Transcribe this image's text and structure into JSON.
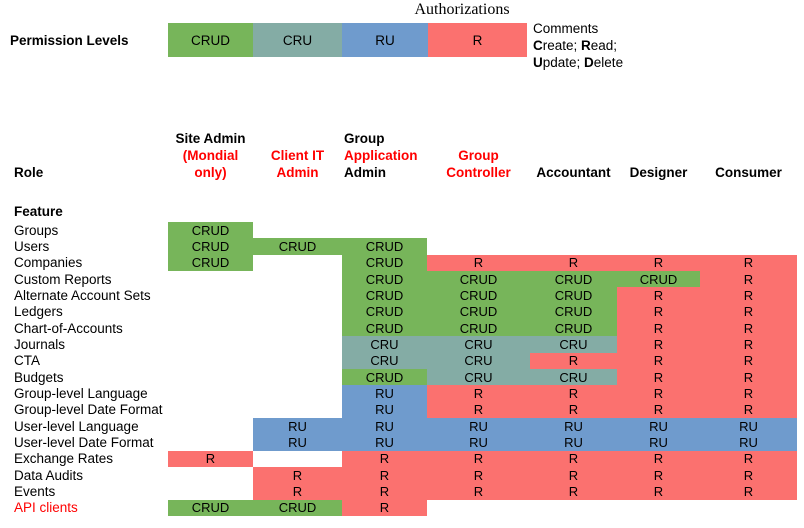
{
  "title": "Authorizations",
  "colors": {
    "green": "#77B55A",
    "teal": "#84ACA5",
    "blue": "#6F9BCD",
    "red": "#FB716F",
    "text_red": "#FF0000",
    "text_black": "#000000"
  },
  "legend": {
    "label": "Permission Levels",
    "cells": [
      {
        "text": "CRUD",
        "color": "green"
      },
      {
        "text": "CRU",
        "color": "teal"
      },
      {
        "text": "RU",
        "color": "blue"
      },
      {
        "text": "R",
        "color": "red"
      }
    ],
    "comments": {
      "heading": "Comments",
      "c": "C",
      "create_rest": "reate; ",
      "r": "R",
      "read_rest": "ead;",
      "u": "U",
      "update_rest": "pdate; ",
      "d": "D",
      "delete_rest": "elete"
    }
  },
  "header": {
    "role_label": "Role",
    "feature_label": "Feature",
    "columns": [
      {
        "id": "site-admin",
        "align": "center",
        "lines": [
          {
            "text": "Site Admin",
            "color": "text_black"
          },
          {
            "text": "(Mondial",
            "color": "text_red"
          },
          {
            "text": "only)",
            "color": "text_red"
          }
        ]
      },
      {
        "id": "client-it-admin",
        "align": "center",
        "lines": [
          {
            "text": "Client IT",
            "color": "text_red"
          },
          {
            "text": "Admin",
            "color": "text_red"
          }
        ]
      },
      {
        "id": "group-application-admin",
        "align": "left",
        "lines": [
          {
            "text": "Group",
            "color": "text_black"
          },
          {
            "text": "Application",
            "color": "text_red"
          },
          {
            "text": "Admin",
            "color": "text_black"
          }
        ]
      },
      {
        "id": "group-controller",
        "align": "center",
        "lines": [
          {
            "text": "Group",
            "color": "text_red"
          },
          {
            "text": "Controller",
            "color": "text_red"
          }
        ]
      },
      {
        "id": "accountant",
        "align": "center",
        "lines": [
          {
            "text": "Accountant",
            "color": "text_black"
          }
        ]
      },
      {
        "id": "designer",
        "align": "center",
        "lines": [
          {
            "text": "Designer",
            "color": "text_black"
          }
        ]
      },
      {
        "id": "consumer",
        "align": "center",
        "lines": [
          {
            "text": "Consumer",
            "color": "text_black"
          }
        ]
      }
    ]
  },
  "rows": [
    {
      "feature": "Groups",
      "cells": [
        {
          "t": "CRUD",
          "c": "green"
        },
        null,
        null,
        null,
        null,
        null,
        null
      ]
    },
    {
      "feature": "Users",
      "cells": [
        {
          "t": "CRUD",
          "c": "green"
        },
        {
          "t": "CRUD",
          "c": "green"
        },
        {
          "t": "CRUD",
          "c": "green"
        },
        null,
        null,
        null,
        null
      ]
    },
    {
      "feature": "Companies",
      "cells": [
        {
          "t": "CRUD",
          "c": "green"
        },
        null,
        {
          "t": "CRUD",
          "c": "green"
        },
        {
          "t": "R",
          "c": "red"
        },
        {
          "t": "R",
          "c": "red"
        },
        {
          "t": "R",
          "c": "red"
        },
        {
          "t": "R",
          "c": "red"
        }
      ]
    },
    {
      "feature": "Custom Reports",
      "cells": [
        null,
        null,
        {
          "t": "CRUD",
          "c": "green"
        },
        {
          "t": "CRUD",
          "c": "green"
        },
        {
          "t": "CRUD",
          "c": "green"
        },
        {
          "t": "CRUD",
          "c": "green"
        },
        {
          "t": "R",
          "c": "red"
        }
      ]
    },
    {
      "feature": "Alternate Account Sets",
      "cells": [
        null,
        null,
        {
          "t": "CRUD",
          "c": "green"
        },
        {
          "t": "CRUD",
          "c": "green"
        },
        {
          "t": "CRUD",
          "c": "green"
        },
        {
          "t": "R",
          "c": "red"
        },
        {
          "t": "R",
          "c": "red"
        }
      ]
    },
    {
      "feature": "Ledgers",
      "cells": [
        null,
        null,
        {
          "t": "CRUD",
          "c": "green"
        },
        {
          "t": "CRUD",
          "c": "green"
        },
        {
          "t": "CRUD",
          "c": "green"
        },
        {
          "t": "R",
          "c": "red"
        },
        {
          "t": "R",
          "c": "red"
        }
      ]
    },
    {
      "feature": "Chart-of-Accounts",
      "cells": [
        null,
        null,
        {
          "t": "CRUD",
          "c": "green"
        },
        {
          "t": "CRUD",
          "c": "green"
        },
        {
          "t": "CRUD",
          "c": "green"
        },
        {
          "t": "R",
          "c": "red"
        },
        {
          "t": "R",
          "c": "red"
        }
      ]
    },
    {
      "feature": "Journals",
      "cells": [
        null,
        null,
        {
          "t": "CRU",
          "c": "teal"
        },
        {
          "t": "CRU",
          "c": "teal"
        },
        {
          "t": "CRU",
          "c": "teal"
        },
        {
          "t": "R",
          "c": "red"
        },
        {
          "t": "R",
          "c": "red"
        }
      ]
    },
    {
      "feature": "CTA",
      "cells": [
        null,
        null,
        {
          "t": "CRU",
          "c": "teal"
        },
        {
          "t": "CRU",
          "c": "teal"
        },
        {
          "t": "R",
          "c": "red"
        },
        {
          "t": "R",
          "c": "red"
        },
        {
          "t": "R",
          "c": "red"
        }
      ]
    },
    {
      "feature": "Budgets",
      "cells": [
        null,
        null,
        {
          "t": "CRUD",
          "c": "green"
        },
        {
          "t": "CRU",
          "c": "teal"
        },
        {
          "t": "CRU",
          "c": "teal"
        },
        {
          "t": "R",
          "c": "red"
        },
        {
          "t": "R",
          "c": "red"
        }
      ]
    },
    {
      "feature": "Group-level Language",
      "cells": [
        null,
        null,
        {
          "t": "RU",
          "c": "blue"
        },
        {
          "t": "R",
          "c": "red"
        },
        {
          "t": "R",
          "c": "red"
        },
        {
          "t": "R",
          "c": "red"
        },
        {
          "t": "R",
          "c": "red"
        }
      ]
    },
    {
      "feature": "Group-level Date Format",
      "cells": [
        null,
        null,
        {
          "t": "RU",
          "c": "blue"
        },
        {
          "t": "R",
          "c": "red"
        },
        {
          "t": "R",
          "c": "red"
        },
        {
          "t": "R",
          "c": "red"
        },
        {
          "t": "R",
          "c": "red"
        }
      ]
    },
    {
      "feature": "User-level Language",
      "cells": [
        null,
        {
          "t": "RU",
          "c": "blue"
        },
        {
          "t": "RU",
          "c": "blue"
        },
        {
          "t": "RU",
          "c": "blue"
        },
        {
          "t": "RU",
          "c": "blue"
        },
        {
          "t": "RU",
          "c": "blue"
        },
        {
          "t": "RU",
          "c": "blue"
        }
      ]
    },
    {
      "feature": "User-level Date Format",
      "cells": [
        null,
        {
          "t": "RU",
          "c": "blue"
        },
        {
          "t": "RU",
          "c": "blue"
        },
        {
          "t": "RU",
          "c": "blue"
        },
        {
          "t": "RU",
          "c": "blue"
        },
        {
          "t": "RU",
          "c": "blue"
        },
        {
          "t": "RU",
          "c": "blue"
        }
      ]
    },
    {
      "feature": "Exchange Rates",
      "cells": [
        {
          "t": "R",
          "c": "red"
        },
        null,
        {
          "t": "R",
          "c": "red"
        },
        {
          "t": "R",
          "c": "red"
        },
        {
          "t": "R",
          "c": "red"
        },
        {
          "t": "R",
          "c": "red"
        },
        {
          "t": "R",
          "c": "red"
        }
      ]
    },
    {
      "feature": "Data Audits",
      "cells": [
        null,
        {
          "t": "R",
          "c": "red"
        },
        {
          "t": "R",
          "c": "red"
        },
        {
          "t": "R",
          "c": "red"
        },
        {
          "t": "R",
          "c": "red"
        },
        {
          "t": "R",
          "c": "red"
        },
        {
          "t": "R",
          "c": "red"
        }
      ]
    },
    {
      "feature": "Events",
      "cells": [
        null,
        {
          "t": "R",
          "c": "red"
        },
        {
          "t": "R",
          "c": "red"
        },
        {
          "t": "R",
          "c": "red"
        },
        {
          "t": "R",
          "c": "red"
        },
        {
          "t": "R",
          "c": "red"
        },
        {
          "t": "R",
          "c": "red"
        }
      ]
    },
    {
      "feature": "API clients",
      "feature_color": "text_red",
      "cells": [
        {
          "t": "CRUD",
          "c": "green"
        },
        {
          "t": "CRUD",
          "c": "green"
        },
        {
          "t": "R",
          "c": "red"
        },
        null,
        null,
        null,
        null
      ]
    }
  ]
}
